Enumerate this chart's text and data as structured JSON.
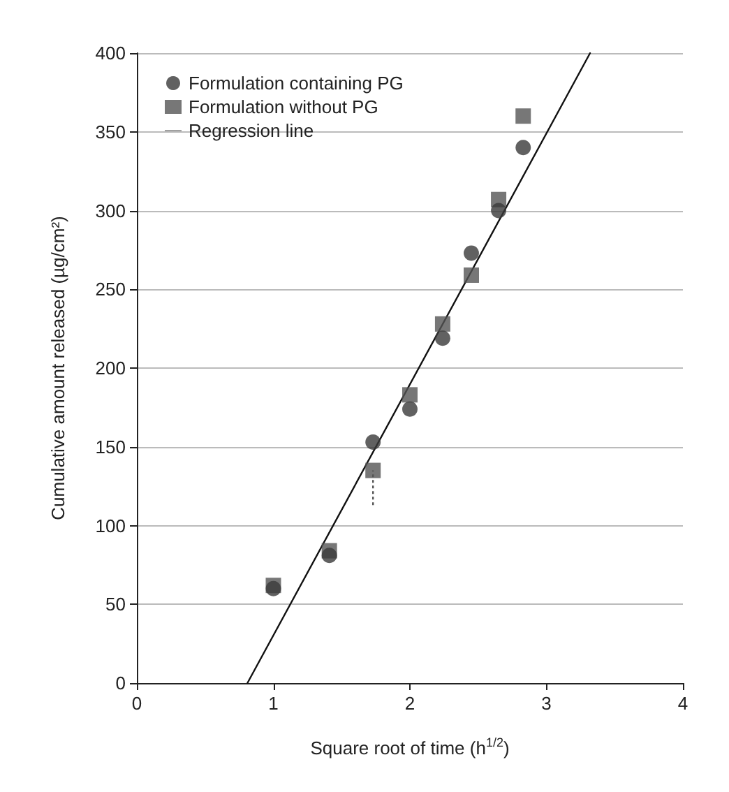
{
  "chart_data": {
    "type": "scatter",
    "xlabel": "Square root of time (h$^{1/2}$)",
    "ylabel": "Cumulative amount released (µg/cm²)",
    "xlim": [
      0,
      4
    ],
    "xticks": [
      0,
      1,
      2,
      3,
      4
    ],
    "ylim": [
      0,
      400
    ],
    "yticks": [
      0,
      50,
      100,
      150,
      200,
      250,
      300,
      350,
      400
    ],
    "grid": "y",
    "legend": "top left",
    "series": [
      {
        "name": "Formulation containing PG",
        "marker": "circle",
        "color": "#3a3a3a",
        "x": [
          1.0,
          1.41,
          1.73,
          2.0,
          2.24,
          2.45,
          2.65,
          2.83
        ],
        "values": [
          60,
          81,
          153,
          174,
          219,
          273,
          300,
          340
        ]
      },
      {
        "name": "Formulation without PG",
        "marker": "square",
        "color": "#555555",
        "x": [
          1.0,
          1.41,
          1.73,
          2.0,
          2.24,
          2.45,
          2.65,
          2.83
        ],
        "values": [
          62,
          84,
          135,
          183,
          228,
          259,
          307,
          360
        ],
        "errors": [
          null,
          null,
          [
            113,
            135
          ],
          null,
          null,
          null,
          null,
          null
        ]
      },
      {
        "name": "Regression line",
        "type": "line",
        "marker": "none",
        "line_style": "solid",
        "color": "#111111",
        "x": [
          0.81,
          3.32
        ],
        "values": [
          0,
          400
        ]
      }
    ]
  }
}
